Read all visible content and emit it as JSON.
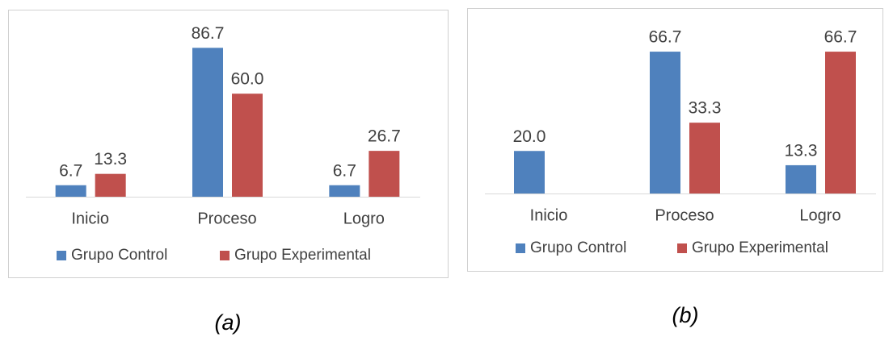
{
  "chart_data": [
    {
      "type": "bar",
      "caption": "(a)",
      "categories": [
        "Inicio",
        "Proceso",
        "Logro"
      ],
      "series": [
        {
          "name": "Grupo Control",
          "color": "#4f81bd",
          "values": [
            6.7,
            86.7,
            6.7
          ],
          "value_labels": [
            "6.7",
            "86.7",
            "6.7"
          ]
        },
        {
          "name": "Grupo Experimental",
          "color": "#c0504d",
          "values": [
            13.3,
            60,
            26.7
          ],
          "value_labels": [
            "13.3",
            "60.0",
            "26.7"
          ]
        }
      ],
      "ylim": [
        0,
        100
      ],
      "legend": "bottom"
    },
    {
      "type": "bar",
      "caption": "(b)",
      "categories": [
        "Inicio",
        "Proceso",
        "Logro"
      ],
      "series": [
        {
          "name": "Grupo Control",
          "color": "#4f81bd",
          "values": [
            20,
            66.7,
            13.3
          ],
          "value_labels": [
            "20.0",
            "66.7",
            "13.3"
          ]
        },
        {
          "name": "Grupo Experimental",
          "color": "#c0504d",
          "values": [
            null,
            33.3,
            66.7
          ],
          "value_labels": [
            null,
            "33.3",
            "66.7"
          ]
        }
      ],
      "ylim": [
        0,
        80
      ],
      "legend": "bottom"
    }
  ]
}
